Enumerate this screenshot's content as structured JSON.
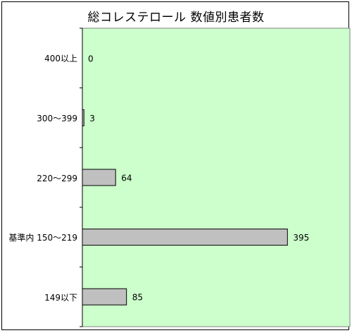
{
  "chart_data": {
    "type": "bar",
    "orientation": "horizontal",
    "title": "総コレステロール 数値別患者数",
    "categories": [
      "400以上",
      "300～399",
      "220～299",
      "基準内 150～219",
      "149以下"
    ],
    "values": [
      0,
      3,
      64,
      395,
      85
    ],
    "xlim": [
      0,
      400
    ],
    "grid": false,
    "colors": {
      "plot_background": "#ccffcc",
      "bar_fill": "#c0c0c0",
      "bar_stroke": "#000000"
    }
  }
}
